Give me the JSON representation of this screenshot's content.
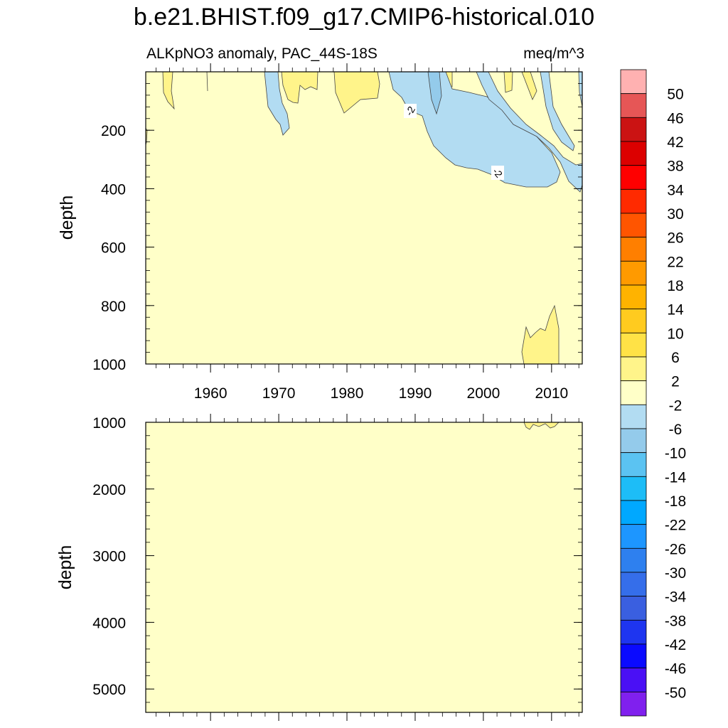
{
  "chart_data": {
    "type": "contour",
    "title": "b.e21.BHIST.f09_g17.CMIP6-historical.010",
    "panels": [
      {
        "id": "upper",
        "left_label": "ALKpNO3 anomaly, PAC_44S-18S",
        "right_label": "meq/m^3",
        "ylabel": "depth",
        "xlim": [
          1950.5,
          2014.5
        ],
        "ylim": [
          1000,
          0
        ],
        "yticks": [
          200,
          400,
          600,
          800,
          1000
        ],
        "xticks": [
          1960,
          1970,
          1980,
          1990,
          2000,
          2010
        ],
        "contour_labels": [
          {
            "text": "-2",
            "year": 1989.5,
            "depth": 140
          },
          {
            "text": "-2",
            "year": 2002.2,
            "depth": 345
          }
        ]
      },
      {
        "id": "lower",
        "ylabel": "depth",
        "xlim": [
          1950.5,
          2014.5
        ],
        "ylim": [
          5350,
          1000
        ],
        "yticks": [
          1000,
          2000,
          3000,
          4000,
          5000
        ]
      }
    ],
    "colorbar": {
      "boundaries": [
        "50",
        "46",
        "42",
        "38",
        "34",
        "30",
        "26",
        "22",
        "18",
        "14",
        "10",
        "6",
        "2",
        "-2",
        "-6",
        "-10",
        "-14",
        "-18",
        "-22",
        "-26",
        "-30",
        "-34",
        "-38",
        "-42",
        "-46",
        "-50"
      ],
      "colors": [
        "#ffb1b1",
        "#e65656",
        "#cb1313",
        "#dc0000",
        "#ff0000",
        "#ff2a00",
        "#ff5500",
        "#ff7f00",
        "#ff9a00",
        "#ffb300",
        "#ffcb1f",
        "#ffe246",
        "#fff48a",
        "#ffffc8",
        "#b2dcf2",
        "#94cbeb",
        "#5bc3f2",
        "#1dbdf7",
        "#00a8ff",
        "#1d96ff",
        "#2e80ef",
        "#356eea",
        "#3a5fe0",
        "#1e35f0",
        "#0a0aff",
        "#4a10f5",
        "#8020ee"
      ]
    },
    "fill_colors": {
      "background": "#ffffc8",
      "light_blue": "#b2dcf2",
      "mid_blue": "#94cbeb",
      "yellow": "#fff48a"
    }
  }
}
